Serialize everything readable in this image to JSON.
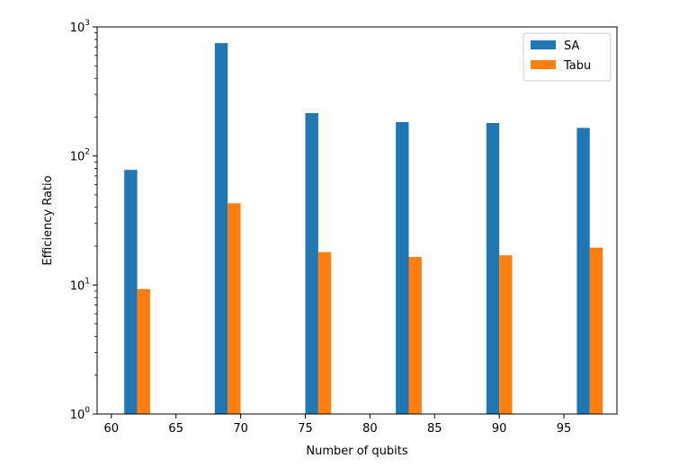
{
  "chart_data": {
    "type": "bar",
    "x": [
      61,
      68,
      75,
      82,
      89,
      96
    ],
    "series": [
      {
        "name": "SA",
        "color": "#1f77b4",
        "values": [
          78,
          750,
          215,
          183,
          180,
          165
        ]
      },
      {
        "name": "Tabu",
        "color": "#ff7f0e",
        "values": [
          9.3,
          43,
          18,
          16.5,
          17,
          19.5
        ]
      }
    ],
    "xlabel": "Number of qubits",
    "ylabel": "Efficiency Ratio",
    "xlim": [
      58.9,
      99.1
    ],
    "ylim": [
      1,
      1000
    ],
    "yscale": "log",
    "bar_width": 1,
    "xticks": [
      60,
      65,
      70,
      75,
      80,
      85,
      90,
      95
    ],
    "xtick_labels": [
      "60",
      "65",
      "70",
      "75",
      "80",
      "85",
      "90",
      "95"
    ],
    "yticks": [
      {
        "value": 1,
        "base": "10",
        "exp": "0"
      },
      {
        "value": 10,
        "base": "10",
        "exp": "1"
      },
      {
        "value": 100,
        "base": "10",
        "exp": "2"
      },
      {
        "value": 1000,
        "base": "10",
        "exp": "3"
      }
    ],
    "legend_position": "top-right",
    "grid": false
  }
}
